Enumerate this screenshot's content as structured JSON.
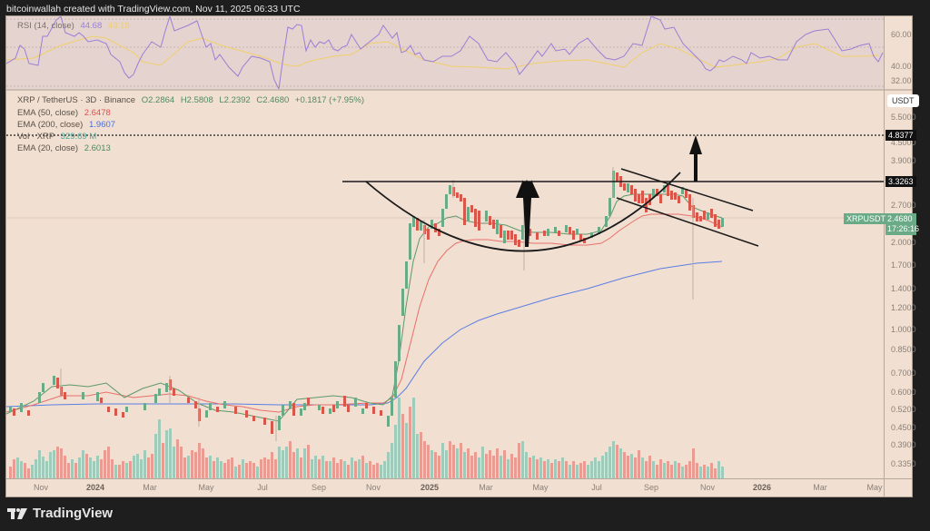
{
  "header": {
    "text": "bitcoinwallah created with TradingView.com, Nov 11, 2025 06:33 UTC"
  },
  "rsi": {
    "label": "RSI (14, close)",
    "value": "44.68",
    "ma_value": "43.19",
    "axis": [
      "60.00",
      "40.00",
      "32.00"
    ]
  },
  "legend": {
    "symbol": "XRP / TetherUS · 3D · Binance",
    "open": "O2.2864",
    "high": "H2.5808",
    "low": "L2.2392",
    "close": "C2.4680",
    "change": "+0.1817 (+7.95%)",
    "ema50_label": "EMA (50, close)",
    "ema50_value": "2.6478",
    "ema200_label": "EMA (200, close)",
    "ema200_value": "1.9607",
    "vol_label": "Vol · XRP",
    "vol_value": "329.69 M",
    "ema20_label": "EMA (20, close)",
    "ema20_value": "2.6013"
  },
  "price_axis": {
    "currency_button": "USDT",
    "ticks": [
      "5.5000",
      "4.5000",
      "3.9000",
      "2.7000",
      "2.0000",
      "1.7000",
      "1.4000",
      "1.2000",
      "1.0000",
      "0.8500",
      "0.7000",
      "0.6000",
      "0.5200",
      "0.4500",
      "0.3900",
      "0.3350"
    ],
    "badges": [
      {
        "label": "4.8377",
        "role": "target-level"
      },
      {
        "label": "3.3263",
        "role": "neckline-level"
      }
    ],
    "current": {
      "symbol": "XRPUSDT",
      "price": "2.4680",
      "countdown": "17:26:16"
    }
  },
  "time_axis": {
    "labels": [
      {
        "t": "Nov",
        "bold": false
      },
      {
        "t": "2024",
        "bold": true
      },
      {
        "t": "Mar",
        "bold": false
      },
      {
        "t": "May",
        "bold": false
      },
      {
        "t": "Jul",
        "bold": false
      },
      {
        "t": "Sep",
        "bold": false
      },
      {
        "t": "Nov",
        "bold": false
      },
      {
        "t": "2025",
        "bold": true
      },
      {
        "t": "Mar",
        "bold": false
      },
      {
        "t": "May",
        "bold": false
      },
      {
        "t": "Jul",
        "bold": false
      },
      {
        "t": "Sep",
        "bold": false
      },
      {
        "t": "Nov",
        "bold": false
      },
      {
        "t": "2026",
        "bold": true
      },
      {
        "t": "Mar",
        "bold": false
      },
      {
        "t": "May",
        "bold": false
      }
    ]
  },
  "footer": {
    "brand": "TradingView"
  },
  "colors": {
    "up": "#6aaa86",
    "down": "#d9574a",
    "ema20": "#5d9a6a",
    "ema50": "#e8706a",
    "ema200": "#5b7ee5",
    "rsi": "#9b7fd4",
    "rsi_ma": "#f0cf6a",
    "background": "#f1dfd1"
  },
  "chart_data": {
    "type": "line",
    "title": "XRP / TetherUS · 3D · Binance",
    "xlabel": "",
    "ylabel": "USDT",
    "scale": "log",
    "ylim": [
      0.32,
      6.0
    ],
    "x": [
      "2023-11",
      "2024-01",
      "2024-03",
      "2024-05",
      "2024-07",
      "2024-09",
      "2024-11",
      "2025-01",
      "2025-03",
      "2025-05",
      "2025-07",
      "2025-09",
      "2025-11"
    ],
    "series": [
      {
        "name": "XRPUSDT close",
        "values": [
          0.6,
          0.55,
          0.62,
          0.52,
          0.45,
          0.58,
          1.1,
          3.1,
          2.3,
          2.2,
          3.5,
          2.9,
          2.47
        ]
      },
      {
        "name": "EMA (20, close)",
        "values": [
          0.58,
          0.57,
          0.6,
          0.53,
          0.49,
          0.57,
          0.9,
          2.6,
          2.45,
          2.25,
          3.1,
          2.85,
          2.6
        ]
      },
      {
        "name": "EMA (50, close)",
        "values": [
          0.57,
          0.57,
          0.58,
          0.54,
          0.52,
          0.56,
          0.7,
          2.1,
          2.35,
          2.25,
          2.8,
          2.85,
          2.65
        ]
      },
      {
        "name": "EMA (200, close)",
        "values": [
          0.55,
          0.55,
          0.56,
          0.56,
          0.55,
          0.56,
          0.6,
          1.1,
          1.6,
          1.8,
          1.88,
          1.94,
          1.96
        ]
      }
    ],
    "annotations": [
      {
        "type": "hline",
        "label": "neckline",
        "value": 3.3263
      },
      {
        "type": "hline-dotted",
        "label": "target",
        "value": 4.8377
      },
      {
        "type": "arc",
        "label": "cup"
      },
      {
        "type": "channel",
        "label": "falling handle channel"
      },
      {
        "type": "arrow",
        "label": "cup depth"
      },
      {
        "type": "arrow",
        "label": "projected breakout"
      }
    ],
    "rsi": {
      "period": 14,
      "value": 44.68,
      "ma": 43.19,
      "ylim": [
        30,
        70
      ]
    },
    "volume": {
      "label": "Vol · XRP",
      "last": "329.69 M"
    },
    "legend_position": "top-left",
    "grid": false
  }
}
